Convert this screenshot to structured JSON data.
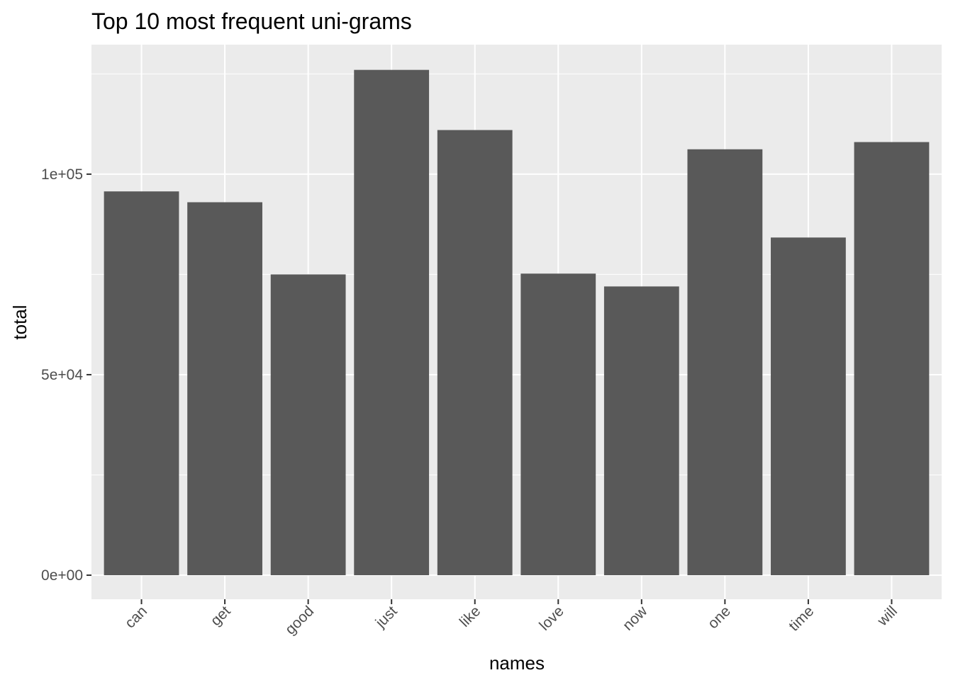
{
  "chart_data": {
    "type": "bar",
    "title": "Top 10 most frequent uni-grams",
    "xlabel": "names",
    "ylabel": "total",
    "categories": [
      "can",
      "get",
      "good",
      "just",
      "like",
      "love",
      "now",
      "one",
      "time",
      "will"
    ],
    "values": [
      95700,
      93000,
      75000,
      126000,
      111000,
      75200,
      72000,
      106200,
      84200,
      108000
    ],
    "ylim": [
      -6000,
      132300
    ],
    "yticks": [
      0,
      50000,
      100000
    ],
    "ytick_labels": [
      "0e+00",
      "5e+04",
      "1e+05"
    ],
    "grid": true,
    "colors": {
      "bar": "#595959",
      "panel_background": "#EBEBEB",
      "grid_line": "#FFFFFF",
      "tick_text": "#4D4D4D",
      "tick_mark": "#333333"
    }
  }
}
